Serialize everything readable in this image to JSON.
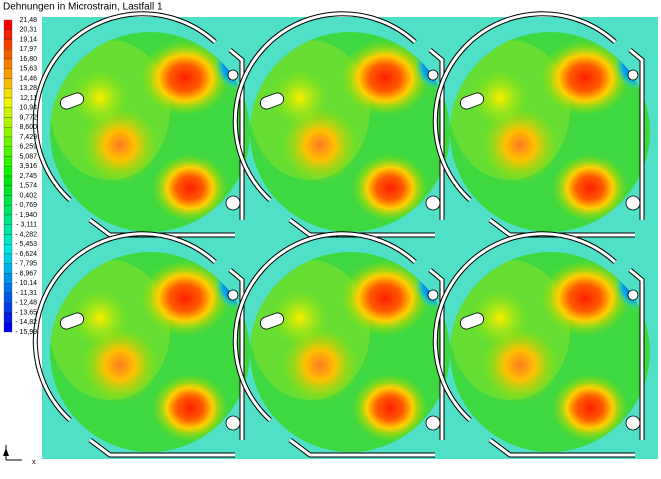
{
  "title": "Dehnungen in Microstrain, Lastfall 1",
  "legend": {
    "labels": [
      "21,48",
      "20,31",
      "19,14",
      "17,97",
      "16,80",
      "15,63",
      "14,46",
      "13,28",
      "12,11",
      "10,94",
      "9,772",
      "8,600",
      "7,429",
      "6,259",
      "5,087",
      "3,916",
      "2,745",
      "1,574",
      "0,402",
      "- 0,769",
      "- 1,940",
      "- 3,111",
      "- 4,282",
      "- 5,453",
      "- 6,624",
      "- 7,795",
      "- 8,967",
      "- 10,14",
      "- 11,31",
      "- 12,48",
      "- 13,65",
      "- 14,82",
      "- 15,99"
    ]
  },
  "axis_label": "x"
}
